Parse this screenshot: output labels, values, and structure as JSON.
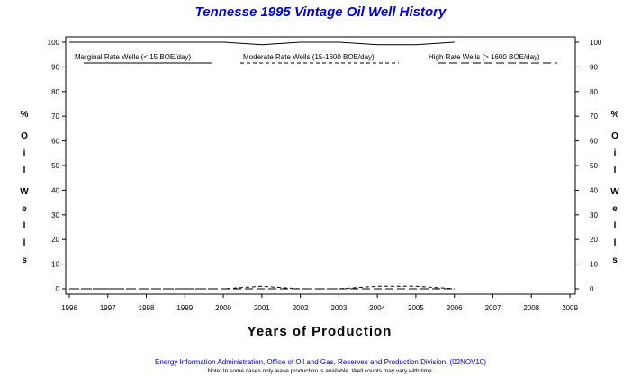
{
  "chart_data": {
    "type": "line",
    "title": "Tennesse 1995 Vintage Oil Well History",
    "xlabel": "Years of Production",
    "ylabel": "% Oil Wells",
    "xlim": [
      1996,
      2009
    ],
    "ylim": [
      0,
      100
    ],
    "x_ticks": [
      "1996",
      "1997",
      "1998",
      "1999",
      "2000",
      "2001",
      "2002",
      "2003",
      "2004",
      "2005",
      "2006",
      "2007",
      "2008",
      "2009"
    ],
    "y_ticks": [
      "0",
      "10",
      "20",
      "30",
      "40",
      "50",
      "60",
      "70",
      "80",
      "90",
      "100"
    ],
    "legend_position": "top",
    "series": [
      {
        "name": "Marginal Rate Wells (< 15 BOE/day)",
        "style": "solid",
        "x": [
          1996,
          1997,
          1998,
          1999,
          2000,
          2001,
          2002,
          2003,
          2004,
          2005,
          2006
        ],
        "y": [
          100,
          100,
          100,
          100,
          100,
          99,
          100,
          100,
          99,
          99,
          100
        ]
      },
      {
        "name": "Moderate Rate Wells (15-1600 BOE/day)",
        "style": "dashed",
        "x": [
          1996,
          1997,
          1998,
          1999,
          2000,
          2001,
          2002,
          2003,
          2004,
          2005,
          2006
        ],
        "y": [
          0,
          0,
          0,
          0,
          0,
          1,
          0,
          0,
          1,
          1,
          0
        ]
      },
      {
        "name": "High Rate Wells (> 1600 BOE/day)",
        "style": "longdash",
        "x": [
          1996,
          1997,
          1998,
          1999,
          2000,
          2001,
          2002,
          2003,
          2004,
          2005,
          2006
        ],
        "y": [
          0,
          0,
          0,
          0,
          0,
          0,
          0,
          0,
          0,
          0,
          0
        ]
      }
    ]
  },
  "footer": {
    "source": "Energy Information Administration, Office of Oil and Gas, Reserves and Production Division. (02NOV10)",
    "note": "Note: In some cases only lease production is available. Well counts may vary with time."
  },
  "colors": {
    "title": "#0000cc",
    "footer": "#0000aa",
    "lines": "#000000"
  }
}
